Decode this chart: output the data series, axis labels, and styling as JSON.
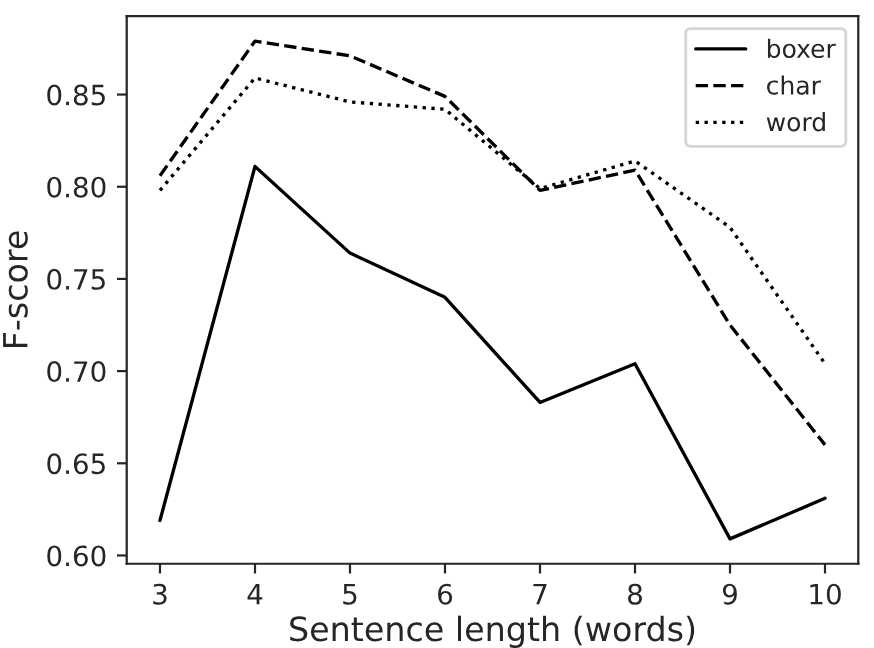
{
  "chart_data": {
    "type": "line",
    "xlabel": "Sentence length (words)",
    "ylabel": "F-score",
    "x": [
      3,
      4,
      5,
      6,
      7,
      8,
      9,
      10
    ],
    "series": [
      {
        "name": "boxer",
        "color": "#000000",
        "line_style": "solid",
        "values": [
          0.619,
          0.811,
          0.764,
          0.74,
          0.683,
          0.704,
          0.609,
          0.631
        ]
      },
      {
        "name": "char",
        "color": "#000000",
        "line_style": "dashed",
        "values": [
          0.806,
          0.879,
          0.871,
          0.849,
          0.798,
          0.809,
          0.725,
          0.66
        ]
      },
      {
        "name": "word",
        "color": "#000000",
        "line_style": "dotted",
        "values": [
          0.798,
          0.859,
          0.846,
          0.842,
          0.799,
          0.814,
          0.778,
          0.704
        ]
      }
    ],
    "xlim": [
      2.65,
      10.35
    ],
    "xticks": [
      3,
      4,
      5,
      6,
      7,
      8,
      9,
      10
    ],
    "ylim": [
      0.5955,
      0.8925
    ],
    "yticks": [
      {
        "value": 0.6,
        "label": "0.60"
      },
      {
        "value": 0.65,
        "label": "0.65"
      },
      {
        "value": 0.7,
        "label": "0.70"
      },
      {
        "value": 0.75,
        "label": "0.75"
      },
      {
        "value": 0.8,
        "label": "0.80"
      },
      {
        "value": 0.85,
        "label": "0.85"
      }
    ],
    "grid": false,
    "legend": "top right",
    "marker": "none"
  }
}
